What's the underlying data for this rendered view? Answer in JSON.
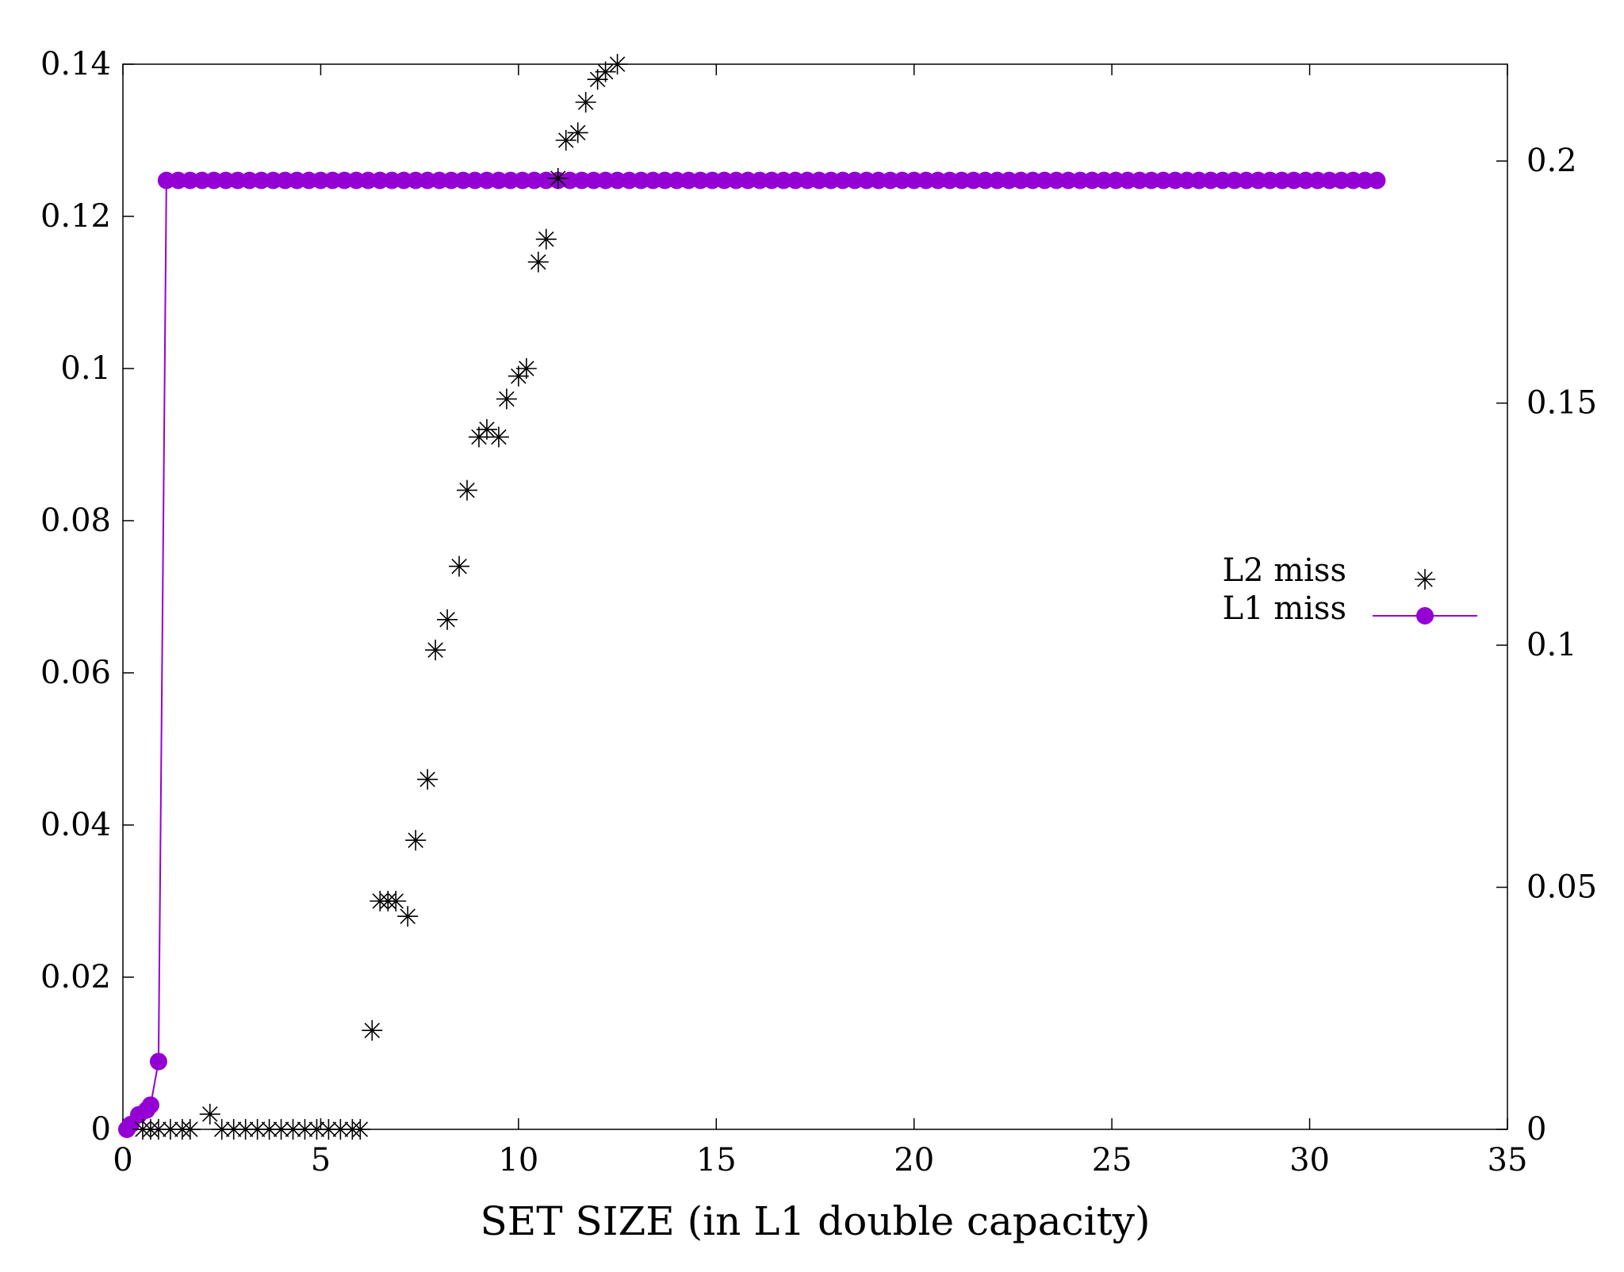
{
  "chart_data": {
    "type": "scatter",
    "xlabel": "SET SIZE (in L1 double capacity)",
    "xlim": [
      0,
      35
    ],
    "x_ticks": [
      "0",
      "5",
      "10",
      "15",
      "20",
      "25",
      "30",
      "35"
    ],
    "ylim_left": [
      0,
      0.14
    ],
    "y_left_ticks": [
      "0",
      "0.02",
      "0.04",
      "0.06",
      "0.08",
      "0.1",
      "0.12",
      "0.14"
    ],
    "ylim_right": [
      0,
      0.22
    ],
    "y_right_ticks": [
      "0",
      "0.05",
      "0.1",
      "0.15",
      "0.2"
    ],
    "legend_position": "right-middle",
    "series": [
      {
        "name": "L2 miss",
        "axis": "left",
        "marker": "asterisk",
        "color": "#000000",
        "points": [
          [
            0.5,
            0.0
          ],
          [
            0.7,
            0.0
          ],
          [
            0.9,
            0.0
          ],
          [
            1.2,
            0.0
          ],
          [
            1.5,
            0.0
          ],
          [
            1.7,
            0.0
          ],
          [
            2.2,
            0.002
          ],
          [
            2.5,
            0.0
          ],
          [
            2.8,
            0.0
          ],
          [
            3.1,
            0.0
          ],
          [
            3.4,
            0.0
          ],
          [
            3.7,
            0.0
          ],
          [
            4.0,
            0.0
          ],
          [
            4.3,
            0.0
          ],
          [
            4.6,
            0.0
          ],
          [
            4.9,
            0.0
          ],
          [
            5.2,
            0.0
          ],
          [
            5.5,
            0.0
          ],
          [
            5.8,
            0.0
          ],
          [
            6.0,
            0.0
          ],
          [
            6.3,
            0.013
          ],
          [
            6.5,
            0.03
          ],
          [
            6.7,
            0.03
          ],
          [
            6.9,
            0.03
          ],
          [
            7.2,
            0.028
          ],
          [
            7.4,
            0.038
          ],
          [
            7.7,
            0.046
          ],
          [
            7.9,
            0.063
          ],
          [
            8.2,
            0.067
          ],
          [
            8.5,
            0.074
          ],
          [
            8.7,
            0.084
          ],
          [
            9.0,
            0.091
          ],
          [
            9.2,
            0.092
          ],
          [
            9.5,
            0.091
          ],
          [
            9.7,
            0.096
          ],
          [
            10.0,
            0.099
          ],
          [
            10.2,
            0.1
          ],
          [
            10.5,
            0.114
          ],
          [
            10.7,
            0.117
          ],
          [
            11.0,
            0.125
          ],
          [
            11.2,
            0.13
          ],
          [
            11.5,
            0.131
          ],
          [
            11.7,
            0.135
          ],
          [
            12.0,
            0.138
          ],
          [
            12.2,
            0.139
          ],
          [
            12.5,
            0.14
          ]
        ]
      },
      {
        "name": "L1 miss",
        "axis": "right",
        "marker": "circle-line",
        "color": "#9400D3",
        "points": [
          [
            0.1,
            0.0
          ],
          [
            0.2,
            0.001
          ],
          [
            0.4,
            0.003
          ],
          [
            0.6,
            0.004
          ],
          [
            0.7,
            0.005
          ],
          [
            0.9,
            0.014
          ],
          [
            1.1,
            0.196
          ],
          [
            1.4,
            0.196
          ],
          [
            1.7,
            0.196
          ],
          [
            2.0,
            0.196
          ],
          [
            2.3,
            0.196
          ],
          [
            2.6,
            0.196
          ],
          [
            2.9,
            0.196
          ],
          [
            3.2,
            0.196
          ],
          [
            3.5,
            0.196
          ],
          [
            3.8,
            0.196
          ],
          [
            4.1,
            0.196
          ],
          [
            4.4,
            0.196
          ],
          [
            4.7,
            0.196
          ],
          [
            5.0,
            0.196
          ],
          [
            5.3,
            0.196
          ],
          [
            5.6,
            0.196
          ],
          [
            5.9,
            0.196
          ],
          [
            6.2,
            0.196
          ],
          [
            6.5,
            0.196
          ],
          [
            6.8,
            0.196
          ],
          [
            7.1,
            0.196
          ],
          [
            7.4,
            0.196
          ],
          [
            7.7,
            0.196
          ],
          [
            8.0,
            0.196
          ],
          [
            8.3,
            0.196
          ],
          [
            8.6,
            0.196
          ],
          [
            8.9,
            0.196
          ],
          [
            9.2,
            0.196
          ],
          [
            9.5,
            0.196
          ],
          [
            9.8,
            0.196
          ],
          [
            10.1,
            0.196
          ],
          [
            10.4,
            0.196
          ],
          [
            10.7,
            0.196
          ],
          [
            11.0,
            0.196
          ],
          [
            11.3,
            0.196
          ],
          [
            11.6,
            0.196
          ],
          [
            11.9,
            0.196
          ],
          [
            12.2,
            0.196
          ],
          [
            12.5,
            0.196
          ],
          [
            12.8,
            0.196
          ],
          [
            13.1,
            0.196
          ],
          [
            13.4,
            0.196
          ],
          [
            13.7,
            0.196
          ],
          [
            14.0,
            0.196
          ],
          [
            14.3,
            0.196
          ],
          [
            14.6,
            0.196
          ],
          [
            14.9,
            0.196
          ],
          [
            15.2,
            0.196
          ],
          [
            15.5,
            0.196
          ],
          [
            15.8,
            0.196
          ],
          [
            16.1,
            0.196
          ],
          [
            16.4,
            0.196
          ],
          [
            16.7,
            0.196
          ],
          [
            17.0,
            0.196
          ],
          [
            17.3,
            0.196
          ],
          [
            17.6,
            0.196
          ],
          [
            17.9,
            0.196
          ],
          [
            18.2,
            0.196
          ],
          [
            18.5,
            0.196
          ],
          [
            18.8,
            0.196
          ],
          [
            19.1,
            0.196
          ],
          [
            19.4,
            0.196
          ],
          [
            19.7,
            0.196
          ],
          [
            20.0,
            0.196
          ],
          [
            20.3,
            0.196
          ],
          [
            20.6,
            0.196
          ],
          [
            20.9,
            0.196
          ],
          [
            21.2,
            0.196
          ],
          [
            21.5,
            0.196
          ],
          [
            21.8,
            0.196
          ],
          [
            22.1,
            0.196
          ],
          [
            22.4,
            0.196
          ],
          [
            22.7,
            0.196
          ],
          [
            23.0,
            0.196
          ],
          [
            23.3,
            0.196
          ],
          [
            23.6,
            0.196
          ],
          [
            23.9,
            0.196
          ],
          [
            24.2,
            0.196
          ],
          [
            24.5,
            0.196
          ],
          [
            24.8,
            0.196
          ],
          [
            25.1,
            0.196
          ],
          [
            25.4,
            0.196
          ],
          [
            25.7,
            0.196
          ],
          [
            26.0,
            0.196
          ],
          [
            26.3,
            0.196
          ],
          [
            26.6,
            0.196
          ],
          [
            26.9,
            0.196
          ],
          [
            27.2,
            0.196
          ],
          [
            27.5,
            0.196
          ],
          [
            27.8,
            0.196
          ],
          [
            28.1,
            0.196
          ],
          [
            28.4,
            0.196
          ],
          [
            28.7,
            0.196
          ],
          [
            29.0,
            0.196
          ],
          [
            29.3,
            0.196
          ],
          [
            29.6,
            0.196
          ],
          [
            29.9,
            0.196
          ],
          [
            30.2,
            0.196
          ],
          [
            30.5,
            0.196
          ],
          [
            30.8,
            0.196
          ],
          [
            31.1,
            0.196
          ],
          [
            31.4,
            0.196
          ],
          [
            31.7,
            0.196
          ]
        ]
      }
    ]
  }
}
